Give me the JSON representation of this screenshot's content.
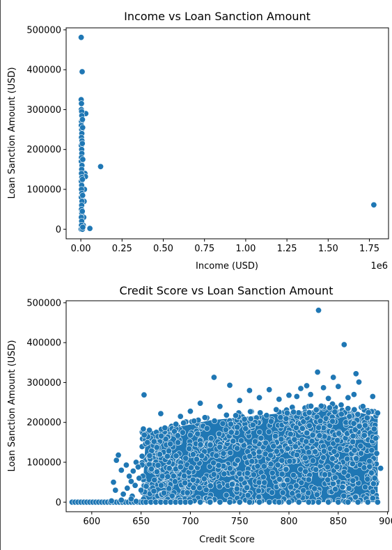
{
  "chart_data": [
    {
      "type": "scatter",
      "title": "Income vs Loan Sanction Amount",
      "xlabel": "Income (USD)",
      "ylabel": "Loan Sanction Amount (USD)",
      "x_offset_label": "1e6",
      "xlim": [
        -0.089,
        1.866
      ],
      "ylim": [
        -24000,
        505000
      ],
      "x_ticks": [
        0.0,
        0.25,
        0.5,
        0.75,
        1.0,
        1.25,
        1.5,
        1.75
      ],
      "x_tick_labels": [
        "0.00",
        "0.25",
        "0.50",
        "0.75",
        "1.00",
        "1.25",
        "1.50",
        "1.75"
      ],
      "y_ticks": [
        0,
        100000,
        200000,
        300000,
        400000,
        500000
      ],
      "y_tick_labels": [
        "0",
        "100000",
        "200000",
        "300000",
        "400000",
        "500000"
      ],
      "grid": false,
      "marker_color": "#1f77b4",
      "points": [
        [
          0.002,
          481000
        ],
        [
          0.008,
          395000
        ],
        [
          0.12,
          157000
        ],
        [
          1.777,
          61000
        ],
        [
          0.055,
          2000
        ],
        [
          0.03,
          290000
        ],
        [
          0.025,
          140000
        ],
        [
          0.028,
          132000
        ],
        [
          0.022,
          100000
        ],
        [
          0.02,
          70000
        ],
        [
          0.018,
          30000
        ],
        [
          0.015,
          10000
        ],
        [
          0.002,
          325000
        ],
        [
          0.004,
          315000
        ],
        [
          0.003,
          300000
        ],
        [
          0.005,
          295000
        ],
        [
          0.006,
          285000
        ],
        [
          0.004,
          270000
        ],
        [
          0.003,
          260000
        ],
        [
          0.005,
          250000
        ],
        [
          0.006,
          240000
        ],
        [
          0.004,
          230000
        ],
        [
          0.007,
          222000
        ],
        [
          0.003,
          210000
        ],
        [
          0.005,
          200000
        ],
        [
          0.006,
          190000
        ],
        [
          0.004,
          180000
        ],
        [
          0.003,
          170000
        ],
        [
          0.007,
          160000
        ],
        [
          0.005,
          150000
        ],
        [
          0.004,
          140000
        ],
        [
          0.006,
          130000
        ],
        [
          0.003,
          120000
        ],
        [
          0.005,
          110000
        ],
        [
          0.004,
          100000
        ],
        [
          0.006,
          90000
        ],
        [
          0.003,
          80000
        ],
        [
          0.007,
          70000
        ],
        [
          0.005,
          60000
        ],
        [
          0.004,
          50000
        ],
        [
          0.006,
          40000
        ],
        [
          0.003,
          30000
        ],
        [
          0.005,
          20000
        ],
        [
          0.004,
          10000
        ],
        [
          0.002,
          0
        ],
        [
          0.01,
          0
        ],
        [
          0.012,
          5000
        ],
        [
          0.009,
          45000
        ],
        [
          0.011,
          85000
        ],
        [
          0.01,
          125000
        ],
        [
          0.012,
          175000
        ],
        [
          0.009,
          215000
        ],
        [
          0.011,
          255000
        ],
        [
          0.01,
          275000
        ]
      ]
    },
    {
      "type": "scatter",
      "title": "Credit Score vs Loan Sanction Amount",
      "xlabel": "Credit Score",
      "ylabel": "Loan Sanction Amount (USD)",
      "xlim": [
        574,
        901
      ],
      "ylim": [
        -24000,
        505000
      ],
      "x_ticks": [
        600,
        650,
        700,
        750,
        800,
        850,
        900
      ],
      "x_tick_labels": [
        "600",
        "650",
        "700",
        "750",
        "800",
        "850",
        "900"
      ],
      "y_ticks": [
        0,
        100000,
        200000,
        300000,
        400000,
        500000
      ],
      "y_tick_labels": [
        "0",
        "100000",
        "200000",
        "300000",
        "400000",
        "500000"
      ],
      "grid": false,
      "marker_color": "#1f77b4",
      "dense_band": {
        "x_range": [
          651,
          890
        ],
        "y_range": [
          0,
          200000
        ],
        "upper_edge_points": [
          [
            655,
            190000
          ],
          [
            665,
            195000
          ],
          [
            680,
            200000
          ],
          [
            700,
            210000
          ],
          [
            720,
            220000
          ],
          [
            740,
            225000
          ],
          [
            760,
            230000
          ],
          [
            780,
            235000
          ],
          [
            800,
            240000
          ],
          [
            820,
            245000
          ],
          [
            840,
            250000
          ],
          [
            860,
            245000
          ],
          [
            880,
            235000
          ],
          [
            890,
            225000
          ]
        ]
      },
      "points": [
        [
          830,
          481000
        ],
        [
          856,
          395000
        ],
        [
          829,
          326000
        ],
        [
          868,
          322000
        ],
        [
          724,
          313000
        ],
        [
          845,
          313000
        ],
        [
          871,
          301000
        ],
        [
          653,
          269000
        ],
        [
          740,
          293000
        ],
        [
          812,
          285000
        ],
        [
          818,
          292000
        ],
        [
          850,
          290000
        ],
        [
          835,
          287000
        ],
        [
          822,
          270000
        ],
        [
          808,
          265000
        ],
        [
          760,
          280000
        ],
        [
          780,
          282000
        ],
        [
          866,
          270000
        ],
        [
          885,
          265000
        ],
        [
          893,
          85000
        ],
        [
          888,
          160000
        ],
        [
          884,
          130000
        ],
        [
          887,
          60000
        ],
        [
          885,
          10000
        ],
        [
          625,
          105000
        ],
        [
          627,
          118000
        ],
        [
          630,
          80000
        ],
        [
          635,
          93000
        ],
        [
          638,
          65000
        ],
        [
          640,
          52000
        ],
        [
          642,
          78000
        ],
        [
          645,
          100000
        ],
        [
          647,
          88000
        ],
        [
          622,
          50000
        ],
        [
          624,
          30000
        ],
        [
          632,
          20000
        ],
        [
          636,
          35000
        ],
        [
          641,
          15000
        ],
        [
          644,
          42000
        ],
        [
          648,
          60000
        ],
        [
          650,
          30000
        ],
        [
          620,
          3000
        ],
        [
          630,
          5000
        ],
        [
          640,
          8000
        ],
        [
          645,
          2000
        ],
        [
          670,
          222000
        ],
        [
          700,
          228000
        ],
        [
          710,
          248000
        ],
        [
          690,
          215000
        ],
        [
          730,
          240000
        ],
        [
          750,
          255000
        ],
        [
          770,
          262000
        ],
        [
          790,
          258000
        ],
        [
          800,
          268000
        ],
        [
          840,
          260000
        ],
        [
          860,
          262000
        ],
        [
          875,
          240000
        ]
      ],
      "floor_points_x": [
        580,
        583,
        586,
        589,
        592,
        595,
        598,
        601,
        604,
        607,
        610,
        613,
        616,
        619,
        622,
        625,
        628,
        631,
        634,
        637,
        640,
        643,
        646,
        649,
        652,
        655,
        660,
        665,
        670,
        675,
        680,
        685,
        690,
        695,
        700,
        710,
        720,
        730,
        740,
        750,
        760,
        770,
        780,
        790,
        800,
        810,
        820,
        830,
        840,
        850,
        860,
        870,
        880,
        890
      ]
    }
  ]
}
